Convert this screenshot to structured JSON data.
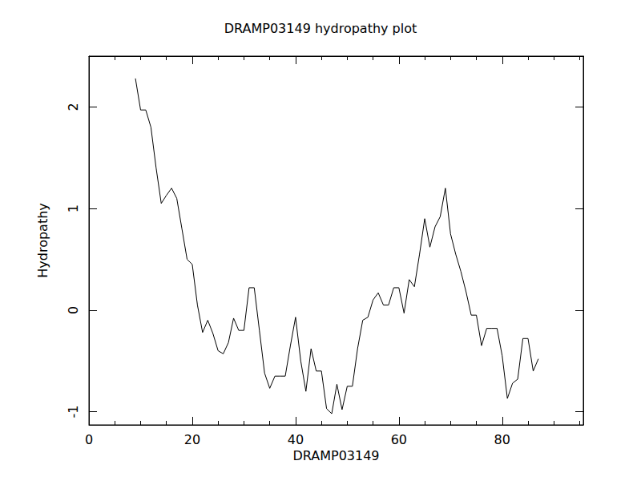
{
  "chart_data": {
    "type": "line",
    "title": "DRAMP03149 hydropathy plot",
    "x_label": "DRAMP03149",
    "y_label": "Hydropathy",
    "x": [
      9,
      10,
      11,
      12,
      13,
      14,
      15,
      16,
      17,
      18,
      19,
      20,
      21,
      22,
      23,
      24,
      25,
      26,
      27,
      28,
      29,
      30,
      31,
      32,
      33,
      34,
      35,
      36,
      37,
      38,
      39,
      40,
      41,
      42,
      43,
      44,
      45,
      46,
      47,
      48,
      49,
      50,
      51,
      52,
      53,
      54,
      55,
      56,
      57,
      58,
      59,
      60,
      61,
      62,
      63,
      64,
      65,
      66,
      67,
      68,
      69,
      70,
      71,
      72,
      73,
      74,
      75,
      76,
      77,
      78,
      79,
      80,
      81,
      82,
      83,
      84,
      85,
      86,
      87
    ],
    "values": [
      2.28,
      1.97,
      1.97,
      1.8,
      1.4,
      1.05,
      1.13,
      1.2,
      1.1,
      0.8,
      0.5,
      0.45,
      0.05,
      -0.22,
      -0.1,
      -0.23,
      -0.4,
      -0.43,
      -0.32,
      -0.08,
      -0.2,
      -0.2,
      0.22,
      0.22,
      -0.2,
      -0.62,
      -0.77,
      -0.65,
      -0.65,
      -0.65,
      -0.35,
      -0.07,
      -0.5,
      -0.8,
      -0.38,
      -0.6,
      -0.6,
      -0.97,
      -1.02,
      -0.73,
      -0.98,
      -0.75,
      -0.75,
      -0.38,
      -0.1,
      -0.07,
      0.1,
      0.17,
      0.05,
      0.05,
      0.22,
      0.22,
      -0.03,
      0.3,
      0.23,
      0.55,
      0.9,
      0.62,
      0.82,
      0.92,
      1.2,
      0.75,
      0.55,
      0.38,
      0.18,
      -0.05,
      -0.05,
      -0.35,
      -0.18,
      -0.18,
      -0.18,
      -0.45,
      -0.87,
      -0.72,
      -0.68,
      -0.28,
      -0.28,
      -0.6,
      -0.48
    ],
    "color": "#000000",
    "xlim": [
      0,
      95.7
    ],
    "xticks": [
      0,
      20,
      40,
      60,
      80
    ],
    "ylim": [
      -1.13,
      2.5
    ],
    "yticks": [
      -1,
      0,
      1,
      2
    ],
    "grid": false
  }
}
